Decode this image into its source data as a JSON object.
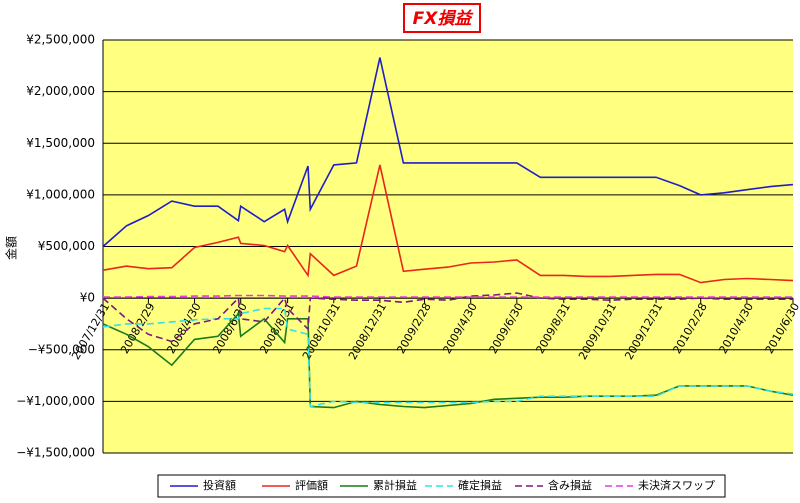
{
  "chart_data": {
    "type": "line",
    "title": "FX損益",
    "ylabel": "金額",
    "x": [
      "2007/12/31",
      "2008/1/31",
      "2008/2/29",
      "2008/3/31",
      "2008/4/30",
      "2008/5/31",
      "2008/6/27",
      "2008/6/30",
      "2008/7/31",
      "2008/8/27",
      "2008/8/31",
      "2008/9/27",
      "2008/9/30",
      "2008/10/31",
      "2008/11/30",
      "2008/12/31",
      "2009/1/31",
      "2009/2/28",
      "2009/3/31",
      "2009/4/30",
      "2009/5/31",
      "2009/6/30",
      "2009/7/31",
      "2009/8/31",
      "2009/9/30",
      "2009/10/31",
      "2009/11/30",
      "2009/12/31",
      "2010/1/31",
      "2010/2/28",
      "2010/3/31",
      "2010/4/30",
      "2010/5/31",
      "2010/6/30"
    ],
    "xlim": [
      "2007/12/31",
      "2010/6/30"
    ],
    "xticks": [
      "2007/12/31",
      "2008/2/29",
      "2008/4/30",
      "2008/6/30",
      "2008/8/31",
      "2008/10/31",
      "2008/12/31",
      "2009/2/28",
      "2009/4/30",
      "2009/6/30",
      "2009/8/31",
      "2009/10/31",
      "2009/12/31",
      "2010/2/28",
      "2010/4/30",
      "2010/6/30"
    ],
    "ylim": [
      -1500000,
      2500000
    ],
    "yticks": [
      {
        "value": -1500000,
        "label": "−¥1,500,000"
      },
      {
        "value": -1000000,
        "label": "−¥1,000,000"
      },
      {
        "value": -500000,
        "label": "−¥500,000"
      },
      {
        "value": 0,
        "label": "¥0"
      },
      {
        "value": 500000,
        "label": "¥500,000"
      },
      {
        "value": 1000000,
        "label": "¥1,000,000"
      },
      {
        "value": 1500000,
        "label": "¥1,500,000"
      },
      {
        "value": 2000000,
        "label": "¥2,000,000"
      },
      {
        "value": 2500000,
        "label": "¥2,500,000"
      }
    ],
    "grid": true,
    "legend": "bottom",
    "series": [
      {
        "name": "投資額",
        "color": "#1f1fc8",
        "dash": false,
        "values": [
          500000,
          700000,
          800000,
          940000,
          890000,
          890000,
          750000,
          890000,
          740000,
          860000,
          740000,
          1280000,
          860000,
          1290000,
          1310000,
          2330000,
          1310000,
          1310000,
          1310000,
          1310000,
          1310000,
          1310000,
          1170000,
          1170000,
          1170000,
          1170000,
          1170000,
          1170000,
          1090000,
          1000000,
          1020000,
          1050000,
          1080000,
          1100000
        ]
      },
      {
        "name": "評価額",
        "color": "#e8261a",
        "dash": false,
        "values": [
          270000,
          310000,
          285000,
          295000,
          490000,
          540000,
          590000,
          530000,
          510000,
          450000,
          510000,
          220000,
          430000,
          220000,
          310000,
          1290000,
          260000,
          280000,
          300000,
          340000,
          350000,
          370000,
          220000,
          220000,
          210000,
          210000,
          220000,
          230000,
          230000,
          150000,
          180000,
          190000,
          180000,
          170000
        ]
      },
      {
        "name": "累計損益",
        "color": "#1a7a1a",
        "dash": false,
        "values": [
          -250000,
          -350000,
          -470000,
          -650000,
          -400000,
          -370000,
          -150000,
          -370000,
          -200000,
          -430000,
          -200000,
          -200000,
          -1050000,
          -1060000,
          -1000000,
          -1030000,
          -1050000,
          -1060000,
          -1040000,
          -1020000,
          -980000,
          -970000,
          -960000,
          -960000,
          -950000,
          -950000,
          -950000,
          -940000,
          -850000,
          -850000,
          -850000,
          -850000,
          -900000,
          -940000
        ]
      },
      {
        "name": "確定損益",
        "color": "#33e0e8",
        "dash": true,
        "values": [
          -280000,
          -250000,
          -250000,
          -230000,
          -210000,
          -200000,
          -200000,
          -150000,
          -100000,
          -100000,
          -300000,
          -350000,
          -1050000,
          -1000000,
          -1010000,
          -1010000,
          -1010000,
          -1010000,
          -1010000,
          -1010000,
          -1000000,
          -1000000,
          -950000,
          -950000,
          -950000,
          -950000,
          -950000,
          -950000,
          -850000,
          -850000,
          -850000,
          -850000,
          -900000,
          -930000
        ]
      },
      {
        "name": "含み損益",
        "color": "#7a1a7a",
        "dash": true,
        "values": [
          0,
          -200000,
          -350000,
          -420000,
          -250000,
          -200000,
          0,
          -200000,
          -230000,
          0,
          -100000,
          -300000,
          0,
          -10000,
          -20000,
          -20000,
          -40000,
          -10000,
          -20000,
          20000,
          30000,
          50000,
          0,
          -10000,
          -10000,
          -20000,
          -10000,
          -10000,
          -10000,
          0,
          -10000,
          -10000,
          -10000,
          -10000
        ]
      },
      {
        "name": "未決済スワップ",
        "color": "#e83ae0",
        "dash": true,
        "values": [
          10000,
          10000,
          15000,
          15000,
          20000,
          20000,
          25000,
          25000,
          25000,
          20000,
          20000,
          20000,
          20000,
          10000,
          10000,
          10000,
          10000,
          10000,
          10000,
          10000,
          10000,
          10000,
          10000,
          10000,
          10000,
          10000,
          10000,
          10000,
          10000,
          10000,
          10000,
          10000,
          10000,
          10000
        ]
      }
    ]
  }
}
